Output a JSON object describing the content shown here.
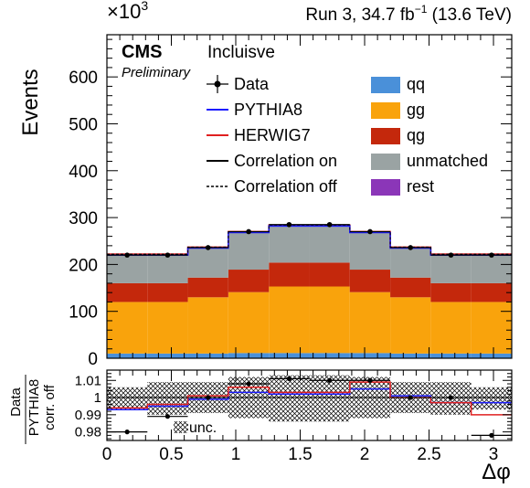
{
  "header": {
    "multiplier_base": "×10",
    "multiplier_exp": "3",
    "run_prefix": "Run 3, 34.7 fb",
    "run_exp": "−1",
    "run_suffix": " (13.6 TeV)",
    "experiment": "CMS",
    "status": "Preliminary",
    "selection": "Incluisve"
  },
  "legend_left": [
    {
      "label": "Data",
      "style": "data"
    },
    {
      "label": "PYTHIA8",
      "style": "line",
      "color": "#1c1cff"
    },
    {
      "label": "HERWIG7",
      "style": "line",
      "color": "#e02020"
    },
    {
      "label": "Correlation on",
      "style": "line",
      "color": "#000000"
    },
    {
      "label": "Correlation off",
      "style": "dashed",
      "color": "#000000"
    }
  ],
  "legend_right": [
    {
      "label": "qq",
      "color": "#4a90d9"
    },
    {
      "label": "gg",
      "color": "#f9a30c"
    },
    {
      "label": "qg",
      "color": "#c4280c"
    },
    {
      "label": "unmatched",
      "color": "#9aa3a3"
    },
    {
      "label": "rest",
      "color": "#8b36b8"
    }
  ],
  "ratio_legend": "unc.",
  "chart_data": [
    {
      "type": "bar",
      "stacked": true,
      "ylabel": "Events",
      "y_multiplier": "×10^3",
      "ylim": [
        0,
        690
      ],
      "xlim": [
        0,
        3.1416
      ],
      "bin_edges": [
        0,
        0.314,
        0.628,
        0.942,
        1.257,
        1.571,
        1.885,
        2.199,
        2.513,
        2.827,
        3.1416
      ],
      "x_ticks": [
        0,
        0.5,
        1,
        1.5,
        2,
        2.5,
        3
      ],
      "y_ticks": [
        0,
        100,
        200,
        300,
        400,
        500,
        600
      ],
      "series": [
        {
          "name": "qq",
          "color": "#4a90d9",
          "values": [
            10,
            10,
            10,
            11,
            11,
            11,
            11,
            10,
            10,
            10
          ]
        },
        {
          "name": "gg",
          "color": "#f9a30c",
          "values": [
            110,
            110,
            120,
            130,
            142,
            142,
            130,
            120,
            110,
            110
          ]
        },
        {
          "name": "qg",
          "color": "#c4280c",
          "values": [
            40,
            40,
            42,
            48,
            51,
            51,
            48,
            42,
            40,
            40
          ]
        },
        {
          "name": "unmatched",
          "color": "#9aa3a3",
          "values": [
            60,
            60,
            63,
            79,
            78,
            78,
            79,
            63,
            60,
            60
          ]
        },
        {
          "name": "rest",
          "color": "#8b36b8",
          "values": [
            0,
            0,
            0,
            0,
            0,
            0,
            0,
            0,
            0,
            0
          ]
        }
      ],
      "pythia8": [
        220,
        220,
        235,
        268,
        282,
        282,
        268,
        235,
        220,
        220
      ],
      "herwig7": [
        222,
        222,
        237,
        270,
        284,
        284,
        270,
        237,
        222,
        222
      ],
      "data_x": [
        0.157,
        0.471,
        0.785,
        1.1,
        1.414,
        1.728,
        2.042,
        2.356,
        2.67,
        2.985
      ],
      "data_y": [
        220,
        220,
        236,
        270,
        285,
        285,
        270,
        236,
        220,
        220
      ]
    },
    {
      "type": "line",
      "ylabel": "Data / PYTHIA8 corr. off",
      "xlabel": "Δφ",
      "ylim": [
        0.975,
        1.016
      ],
      "xlim": [
        0,
        3.1416
      ],
      "x_ticks": [
        0,
        0.5,
        1,
        1.5,
        2,
        2.5,
        3
      ],
      "y_ticks": [
        0.98,
        0.99,
        1,
        1.01
      ],
      "bin_edges": [
        0,
        0.314,
        0.628,
        0.942,
        1.257,
        1.571,
        1.885,
        2.199,
        2.513,
        2.827,
        3.1416
      ],
      "unc_low": [
        0.993,
        0.99,
        0.991,
        0.988,
        0.986,
        0.986,
        0.988,
        0.991,
        0.99,
        0.993
      ],
      "unc_high": [
        1.006,
        1.009,
        1.009,
        1.012,
        1.013,
        1.013,
        1.012,
        1.009,
        1.009,
        1.006
      ],
      "series": [
        {
          "name": "PYTHIA8",
          "color": "#1c1cff",
          "values": [
            0.993,
            0.995,
            0.999,
            1.003,
            1.002,
            1.002,
            1.005,
            1.001,
            0.997,
            0.997
          ]
        },
        {
          "name": "HERWIG7",
          "color": "#e02020",
          "values": [
            0.994,
            0.996,
            1.001,
            1.006,
            1.003,
            1.003,
            1.009,
            1.0,
            0.997,
            0.99
          ]
        }
      ],
      "data_x": [
        0.157,
        0.471,
        0.785,
        1.1,
        1.414,
        1.728,
        2.042,
        2.356,
        2.67,
        2.985
      ],
      "data_y": [
        0.98,
        0.989,
        1.0,
        1.008,
        1.011,
        1.01,
        1.01,
        1.0,
        1.0,
        0.978
      ]
    }
  ]
}
